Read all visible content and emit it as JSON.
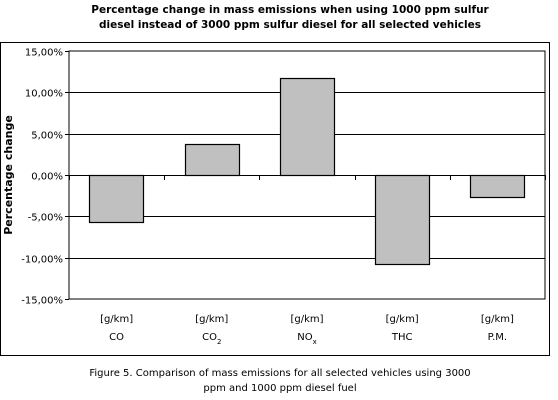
{
  "title_line1": "Percentage change in mass emissions when using 1000 ppm sulfur",
  "title_line2": "diesel instead of 3000 ppm sulfur diesel for all selected vehicles",
  "caption_line1": "Figure 5. Comparison of mass emissions for all selected vehicles using 3000",
  "caption_line2": "ppm and 1000 ppm diesel fuel",
  "colors": {
    "bar_fill": "#c0c0c0",
    "bar_stroke": "#000000",
    "grid": "#000000"
  },
  "chart_data": {
    "type": "bar",
    "title": "Percentage change in mass emissions when using 1000 ppm sulfur diesel instead of 3000 ppm sulfur diesel for all selected vehicles",
    "ylabel": "Percentage change",
    "xlabel": "",
    "ylim": [
      -15,
      15
    ],
    "yticks": [
      15,
      10,
      5,
      0,
      -5,
      -10,
      -15
    ],
    "ytick_labels": [
      "15,00%",
      "10,00%",
      "5,00%",
      "0,00%",
      "-5,00%",
      "-10,00%",
      "-15,00%"
    ],
    "categories": [
      {
        "unit": "[g/km]",
        "name": "CO",
        "sub": ""
      },
      {
        "unit": "[g/km]",
        "name": "CO",
        "sub": "2"
      },
      {
        "unit": "[g/km]",
        "name": "NO",
        "sub": "x"
      },
      {
        "unit": "[g/km]",
        "name": "THC",
        "sub": ""
      },
      {
        "unit": "[g/km]",
        "name": "P.M.",
        "sub": ""
      }
    ],
    "values": [
      -5.7,
      3.7,
      11.7,
      -10.8,
      -2.7
    ],
    "grid": true,
    "legend": "none"
  }
}
